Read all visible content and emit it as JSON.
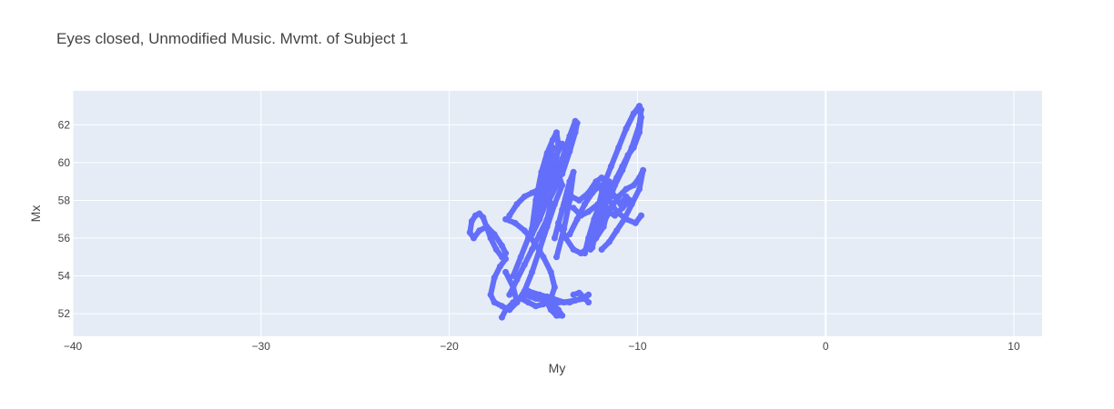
{
  "chart_data": {
    "type": "scatter",
    "title": "Eyes closed, Unmodified Music. Mvmt. of Subject 1",
    "xlabel": "My",
    "ylabel": "Mx",
    "xlim": [
      -40,
      11.5
    ],
    "ylim": [
      50.8,
      63.8
    ],
    "x_ticks": [
      -40,
      -30,
      -20,
      -10,
      0,
      10
    ],
    "x_tick_labels": [
      "−40",
      "−30",
      "−20",
      "−10",
      "0",
      "10"
    ],
    "y_ticks": [
      52,
      54,
      56,
      58,
      60,
      62
    ],
    "y_tick_labels": [
      "52",
      "54",
      "56",
      "58",
      "60",
      "62"
    ],
    "grid": true,
    "mode": "lines+markers",
    "series": [
      {
        "color": "#636efa",
        "traces": [
          {
            "x": [
              -17.2,
              -17.5,
              -17.8,
              -18.2,
              -18.4,
              -18.6,
              -18.8,
              -18.9,
              -18.7,
              -18.4,
              -18.0,
              -17.6,
              -17.2,
              -17.0
            ],
            "y": [
              55.0,
              55.4,
              56.0,
              57.1,
              57.3,
              57.2,
              56.9,
              56.3,
              56.0,
              56.4,
              56.6,
              56.2,
              55.6,
              55.2
            ]
          },
          {
            "x": [
              -17.0,
              -17.3,
              -17.6,
              -17.8,
              -17.6,
              -17.2,
              -16.8,
              -16.4,
              -16.6,
              -17.0
            ],
            "y": [
              54.9,
              54.5,
              53.9,
              53.0,
              52.6,
              52.4,
              52.2,
              52.6,
              53.4,
              54.2
            ]
          },
          {
            "x": [
              -17.2,
              -17.0,
              -16.6,
              -16.2,
              -15.8,
              -15.4,
              -15.0,
              -14.6,
              -14.4,
              -14.6,
              -15.0,
              -15.5,
              -16.0,
              -16.5,
              -17.0
            ],
            "y": [
              51.8,
              52.2,
              52.6,
              52.8,
              52.6,
              52.4,
              52.5,
              52.8,
              53.4,
              54.2,
              55.0,
              55.8,
              56.4,
              56.8,
              57.0
            ]
          },
          {
            "x": [
              -16.8,
              -16.4,
              -16.0,
              -15.6,
              -15.2,
              -14.8,
              -14.6,
              -14.8,
              -15.2,
              -15.6,
              -16.0,
              -16.4,
              -16.8
            ],
            "y": [
              57.2,
              57.8,
              58.2,
              58.4,
              58.6,
              58.4,
              57.8,
              57.0,
              56.2,
              55.4,
              54.6,
              53.8,
              53.0
            ]
          },
          {
            "x": [
              -16.6,
              -16.2,
              -15.8,
              -15.4,
              -15.0,
              -14.6,
              -14.2,
              -14.0,
              -14.4,
              -14.8,
              -15.2,
              -15.6,
              -16.0,
              -16.4
            ],
            "y": [
              54.0,
              55.0,
              56.0,
              57.0,
              58.0,
              58.8,
              59.4,
              58.8,
              57.8,
              56.6,
              55.4,
              54.2,
              53.2,
              52.6
            ]
          },
          {
            "x": [
              -15.6,
              -15.4,
              -15.1,
              -14.8,
              -14.5,
              -14.3,
              -14.2,
              -14.4,
              -14.8,
              -15.2,
              -15.6
            ],
            "y": [
              56.5,
              58.0,
              59.5,
              60.5,
              61.2,
              61.6,
              61.0,
              59.5,
              58.0,
              57.0,
              56.2
            ]
          },
          {
            "x": [
              -15.0,
              -14.6,
              -14.3,
              -14.0,
              -13.8,
              -13.9,
              -14.3,
              -14.7
            ],
            "y": [
              58.5,
              59.6,
              60.4,
              61.0,
              60.6,
              59.8,
              58.8,
              58.0
            ]
          },
          {
            "x": [
              -14.4,
              -14.0,
              -13.6,
              -13.3,
              -13.2,
              -13.3,
              -13.6,
              -14.0
            ],
            "y": [
              58.8,
              60.2,
              61.4,
              62.2,
              62.1,
              61.6,
              60.6,
              59.4
            ]
          },
          {
            "x": [
              -14.3,
              -13.9,
              -13.6,
              -13.4,
              -13.6,
              -14.0,
              -14.4
            ],
            "y": [
              55.0,
              56.5,
              58.0,
              59.5,
              59.0,
              57.5,
              56.0
            ]
          },
          {
            "x": [
              -16.0,
              -15.4,
              -14.8,
              -14.2,
              -13.6,
              -13.0,
              -12.6,
              -12.8,
              -13.3,
              -13.9,
              -14.5,
              -15.2,
              -15.8
            ],
            "y": [
              53.0,
              52.8,
              52.7,
              52.6,
              52.6,
              52.8,
              53.0,
              52.8,
              52.7,
              52.6,
              52.8,
              53.0,
              53.2
            ]
          },
          {
            "x": [
              -14.8,
              -14.6,
              -14.3,
              -14.0,
              -14.2,
              -14.6,
              -14.8
            ],
            "y": [
              52.6,
              52.2,
              51.9,
              51.9,
              52.2,
              52.6,
              52.9
            ]
          },
          {
            "x": [
              -13.6,
              -13.2,
              -12.8,
              -12.4,
              -12.0,
              -11.8,
              -11.6,
              -11.8,
              -12.2,
              -12.6,
              -13.0,
              -13.4,
              -13.8,
              -14.2
            ],
            "y": [
              56.2,
              57.0,
              57.8,
              58.4,
              58.8,
              58.2,
              57.4,
              56.6,
              56.0,
              55.5,
              55.2,
              55.4,
              56.0,
              56.8
            ]
          },
          {
            "x": [
              -13.8,
              -13.5,
              -13.1,
              -12.6,
              -12.2,
              -11.9,
              -11.6,
              -11.2,
              -10.9,
              -10.6,
              -10.4,
              -10.8,
              -11.2,
              -11.6,
              -12.1,
              -12.6,
              -13.0,
              -13.4
            ],
            "y": [
              57.8,
              58.2,
              58.0,
              58.4,
              59.0,
              59.2,
              58.8,
              58.2,
              57.8,
              58.2,
              58.0,
              57.6,
              57.2,
              57.4,
              57.8,
              57.4,
              57.2,
              57.6
            ]
          },
          {
            "x": [
              -12.4,
              -12.2,
              -11.9,
              -11.5,
              -11.1,
              -10.8,
              -10.5,
              -10.2,
              -9.9,
              -9.8,
              -9.9,
              -10.2,
              -10.6,
              -11.0,
              -11.4,
              -11.8,
              -12.1,
              -12.3
            ],
            "y": [
              55.5,
              56.4,
              57.4,
              58.4,
              59.2,
              59.8,
              60.4,
              60.8,
              61.6,
              62.4,
              62.9,
              62.6,
              61.8,
              60.8,
              59.8,
              58.8,
              57.6,
              56.4
            ]
          },
          {
            "x": [
              -10.6,
              -10.2,
              -9.9,
              -9.8,
              -9.9,
              -10.3,
              -10.8,
              -11.2,
              -11.5,
              -11.1,
              -10.6,
              -10.1,
              -9.8
            ],
            "y": [
              61.8,
              62.6,
              63.0,
              62.8,
              62.0,
              60.8,
              59.6,
              58.8,
              58.0,
              57.4,
              57.0,
              56.8,
              57.2
            ]
          },
          {
            "x": [
              -11.8,
              -11.4,
              -11.0,
              -10.6,
              -10.2,
              -9.9,
              -9.7,
              -9.9,
              -10.3,
              -10.7,
              -11.1,
              -11.5,
              -11.9
            ],
            "y": [
              56.8,
              57.6,
              58.2,
              58.6,
              58.8,
              59.2,
              59.6,
              58.6,
              57.8,
              57.0,
              56.4,
              55.8,
              55.4
            ]
          },
          {
            "x": [
              -12.8,
              -12.6,
              -12.3,
              -12.0,
              -11.7,
              -11.5,
              -11.7,
              -12.1,
              -12.5
            ],
            "y": [
              55.2,
              56.0,
              57.0,
              57.8,
              58.6,
              59.0,
              58.0,
              56.6,
              55.4
            ]
          },
          {
            "x": [
              -15.2,
              -15.0,
              -14.8,
              -14.5,
              -14.8,
              -15.1
            ],
            "y": [
              57.6,
              58.6,
              59.8,
              60.8,
              59.6,
              58.2
            ]
          },
          {
            "x": [
              -13.0,
              -12.8,
              -12.6,
              -12.8,
              -13.1,
              -13.4
            ],
            "y": [
              53.0,
              52.8,
              52.6,
              52.8,
              53.1,
              53.0
            ]
          }
        ]
      }
    ]
  }
}
